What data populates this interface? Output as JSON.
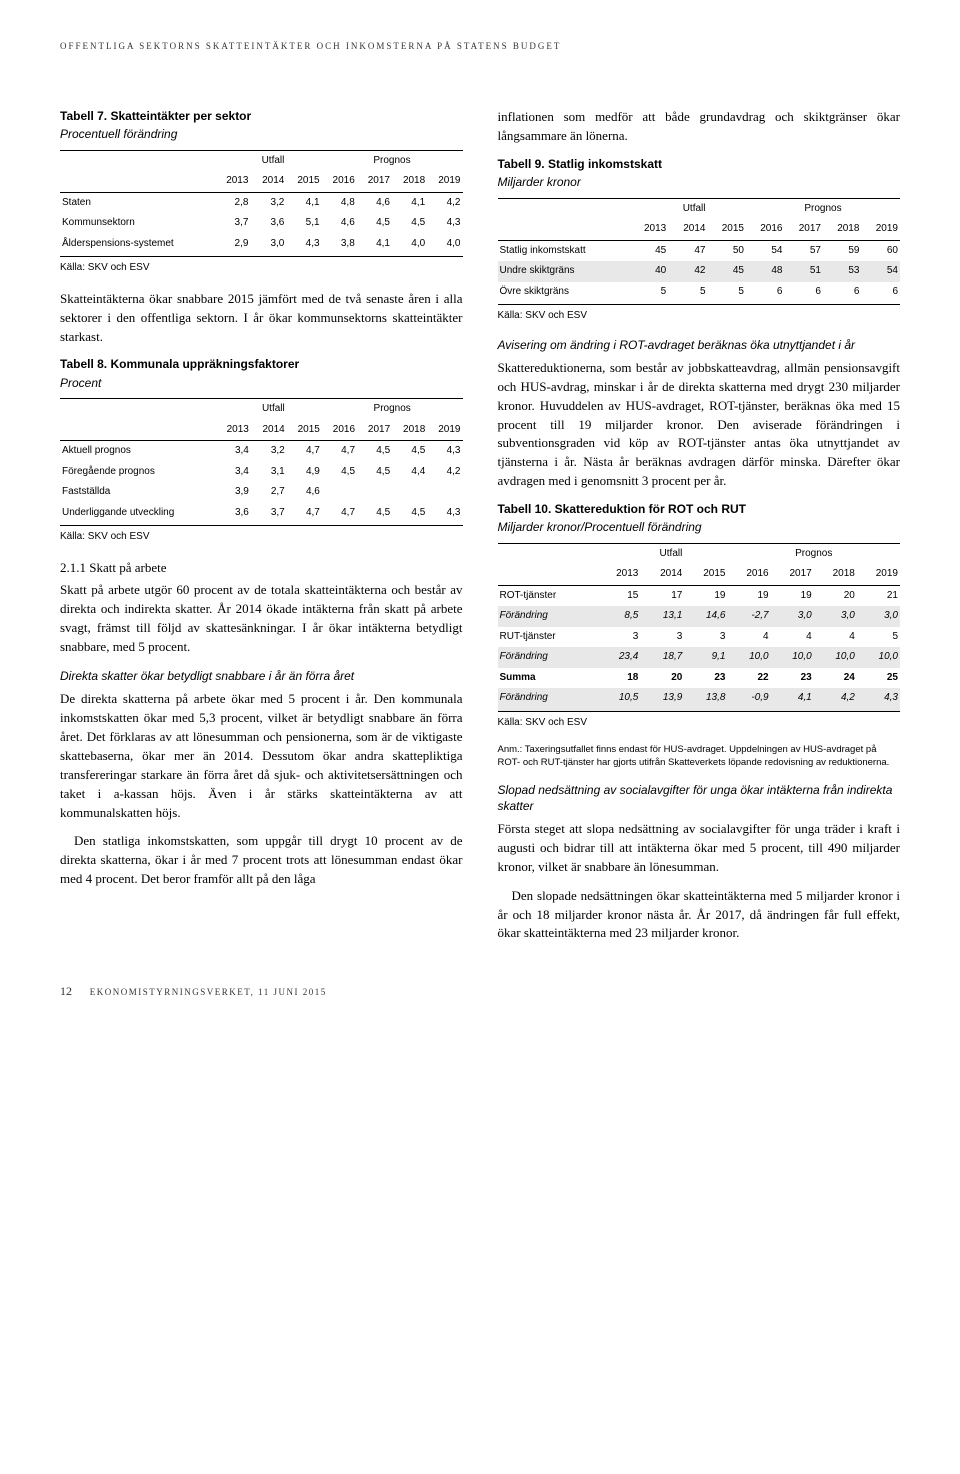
{
  "header": "OFFENTLIGA SEKTORNS SKATTEINTÄKTER OCH INKOMSTERNA PÅ STATENS BUDGET",
  "footer": {
    "page": "12",
    "text": "EKONOMISTYRNINGSVERKET, 11 JUNI 2015"
  },
  "left": {
    "t7": {
      "title": "Tabell 7. Skatteintäkter per sektor",
      "sub": "Procentuell förändring",
      "utfall": "Utfall",
      "prognos": "Prognos",
      "years": [
        "2013",
        "2014",
        "2015",
        "2016",
        "2017",
        "2018",
        "2019"
      ],
      "rows": [
        {
          "label": "Staten",
          "v": [
            "2,8",
            "3,2",
            "4,1",
            "4,8",
            "4,6",
            "4,1",
            "4,2"
          ]
        },
        {
          "label": "Kommunsektorn",
          "v": [
            "3,7",
            "3,6",
            "5,1",
            "4,6",
            "4,5",
            "4,5",
            "4,3"
          ]
        },
        {
          "label": "Ålderspensions-systemet",
          "v": [
            "2,9",
            "3,0",
            "4,3",
            "3,8",
            "4,1",
            "4,0",
            "4,0"
          ]
        }
      ],
      "source": "Källa: SKV och ESV"
    },
    "p1": "Skatteintäkterna ökar snabbare 2015 jämfört med de två senaste åren i alla sektorer i den offentliga sektorn. I år ökar kommunsektorns skatteintäkter starkast.",
    "t8": {
      "title": "Tabell 8. Kommunala uppräkningsfaktorer",
      "sub": "Procent",
      "utfall": "Utfall",
      "prognos": "Prognos",
      "years": [
        "2013",
        "2014",
        "2015",
        "2016",
        "2017",
        "2018",
        "2019"
      ],
      "rows": [
        {
          "label": "Aktuell prognos",
          "v": [
            "3,4",
            "3,2",
            "4,7",
            "4,7",
            "4,5",
            "4,5",
            "4,3"
          ]
        },
        {
          "label": "Föregående prognos",
          "v": [
            "3,4",
            "3,1",
            "4,9",
            "4,5",
            "4,5",
            "4,4",
            "4,2"
          ]
        },
        {
          "label": "Fastställda",
          "v": [
            "3,9",
            "2,7",
            "4,6",
            "",
            "",
            "",
            ""
          ]
        },
        {
          "label": "Underliggande utveckling",
          "v": [
            "3,6",
            "3,7",
            "4,7",
            "4,7",
            "4,5",
            "4,5",
            "4,3"
          ]
        }
      ],
      "source": "Källa: SKV och ESV"
    },
    "h211": "2.1.1 Skatt på arbete",
    "p2": "Skatt på arbete utgör 60 procent av de totala skatteintäkterna och består av direkta och indirekta skatter. År 2014 ökade intäkterna från skatt på arbete svagt, främst till följd av skattesänkningar. I år ökar intäkterna betydligt snabbare, med 5 procent.",
    "sh1": "Direkta skatter ökar betydligt snabbare i år än förra året",
    "p3": "De direkta skatterna på arbete ökar med 5 procent i år. Den kommunala inkomstskatten ökar med 5,3 procent, vilket är betydligt snabbare än förra året. Det förklaras av att lönesumman och pensionerna, som är de viktigaste skattebaserna, ökar mer än 2014. Dessutom ökar andra skattepliktiga transfereringar starkare än förra året då sjuk- och aktivitetsersättningen och taket i a-kassan höjs. Även i år stärks skatteintäkterna av att kommunalskatten höjs.",
    "p4": "Den statliga inkomstskatten, som uppgår till drygt 10 procent av de direkta skatterna, ökar i år med 7 procent trots att lönesumman endast ökar med 4 procent. Det beror framför allt på den låga"
  },
  "right": {
    "p0": "inflationen som medför att både grundavdrag och skiktgränser ökar långsammare än lönerna.",
    "t9": {
      "title": "Tabell 9. Statlig inkomstskatt",
      "sub": "Miljarder kronor",
      "utfall": "Utfall",
      "prognos": "Prognos",
      "years": [
        "2013",
        "2014",
        "2015",
        "2016",
        "2017",
        "2018",
        "2019"
      ],
      "rows": [
        {
          "label": "Statlig inkomstskatt",
          "v": [
            "45",
            "47",
            "50",
            "54",
            "57",
            "59",
            "60"
          ]
        },
        {
          "label": "Undre skiktgräns",
          "v": [
            "40",
            "42",
            "45",
            "48",
            "51",
            "53",
            "54"
          ],
          "shade": true
        },
        {
          "label": "Övre skiktgräns",
          "v": [
            "5",
            "5",
            "5",
            "6",
            "6",
            "6",
            "6"
          ]
        }
      ],
      "source": "Källa: SKV och ESV"
    },
    "sh2": "Avisering om ändring i ROT-avdraget beräknas öka utnyttjandet i år",
    "p5": "Skattereduktionerna, som består av jobbskatteavdrag, allmän pensionsavgift och HUS-avdrag, minskar i år de direkta skatterna med drygt 230 miljarder kronor. Huvuddelen av HUS-avdraget, ROT-tjänster, beräknas öka med 15 procent till 19 miljarder kronor. Den aviserade förändringen i subventionsgraden vid köp av ROT-tjänster antas öka utnyttjandet av tjänsterna i år. Nästa år beräknas avdragen därför minska. Därefter ökar avdragen med i genomsnitt 3 procent per år.",
    "t10": {
      "title": "Tabell 10. Skattereduktion för ROT och RUT",
      "sub": "Miljarder kronor/Procentuell förändring",
      "utfall": "Utfall",
      "prognos": "Prognos",
      "years": [
        "2013",
        "2014",
        "2015",
        "2016",
        "2017",
        "2018",
        "2019"
      ],
      "rows": [
        {
          "label": "ROT-tjänster",
          "v": [
            "15",
            "17",
            "19",
            "19",
            "19",
            "20",
            "21"
          ]
        },
        {
          "label": "Förändring",
          "v": [
            "8,5",
            "13,1",
            "14,6",
            "-2,7",
            "3,0",
            "3,0",
            "3,0"
          ],
          "shade": true,
          "ital": true
        },
        {
          "label": "RUT-tjänster",
          "v": [
            "3",
            "3",
            "3",
            "4",
            "4",
            "4",
            "5"
          ]
        },
        {
          "label": "Förändring",
          "v": [
            "23,4",
            "18,7",
            "9,1",
            "10,0",
            "10,0",
            "10,0",
            "10,0"
          ],
          "shade": true,
          "ital": true
        },
        {
          "label": "Summa",
          "v": [
            "18",
            "20",
            "23",
            "22",
            "23",
            "24",
            "25"
          ],
          "bold": true
        },
        {
          "label": "Förändring",
          "v": [
            "10,5",
            "13,9",
            "13,8",
            "-0,9",
            "4,1",
            "4,2",
            "4,3"
          ],
          "shade": true,
          "ital": true
        }
      ],
      "source": "Källa: SKV och ESV",
      "note": "Anm.: Taxeringsutfallet finns endast för HUS-avdraget. Uppdelningen av HUS-avdraget på ROT- och RUT-tjänster har gjorts utifrån Skatteverkets löpande redovisning av reduktionerna."
    },
    "sh3": "Slopad nedsättning av socialavgifter för unga ökar intäkterna från indirekta skatter",
    "p6": "Första steget att slopa nedsättning av socialavgifter för unga träder i kraft i augusti och bidrar till att intäkterna ökar med 5 procent, till 490 miljarder kronor, vilket är snabbare än lönesumman.",
    "p7": "Den slopade nedsättningen ökar skatteintäkterna med 5 miljarder kronor i år och 18 miljarder kronor nästa år. År 2017, då ändringen får full effekt, ökar skatteintäkterna med 23 miljarder kronor."
  }
}
